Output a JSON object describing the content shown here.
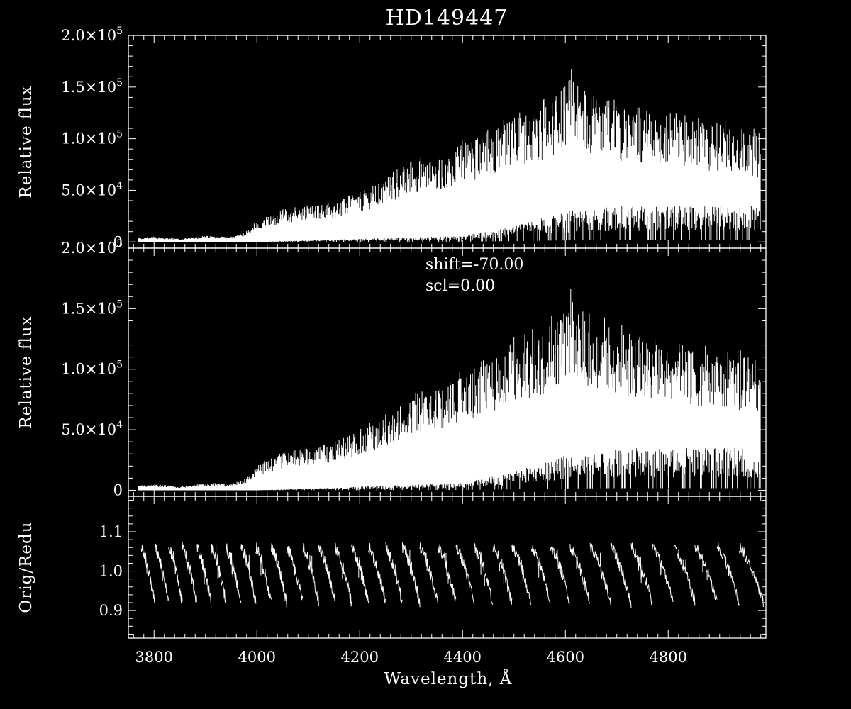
{
  "title": "HD149447",
  "chart_data": [
    {
      "type": "line",
      "panel": "top",
      "title": "HD149447",
      "xlabel": "",
      "ylabel": "Relative flux",
      "xlim": [
        3750,
        4990
      ],
      "ylim": [
        -6000,
        200000
      ],
      "x_ticks": [
        3800,
        4000,
        4200,
        4400,
        4600,
        4800
      ],
      "y_ticks": [
        {
          "value": 0,
          "mantissa": "0",
          "exp": ""
        },
        {
          "value": 50000,
          "mantissa": "5.0×10",
          "exp": "4"
        },
        {
          "value": 100000,
          "mantissa": "1.0×10",
          "exp": "5"
        },
        {
          "value": 150000,
          "mantissa": "1.5×10",
          "exp": "5"
        },
        {
          "value": 200000,
          "mantissa": "2.0×10",
          "exp": "5"
        }
      ],
      "series": [
        {
          "envelope_upper": {
            "x": [
              3770,
              3800,
              3850,
              3900,
              3950,
              3980,
              4000,
              4050,
              4100,
              4150,
              4200,
              4250,
              4300,
              4350,
              4400,
              4450,
              4500,
              4550,
              4580,
              4610,
              4650,
              4700,
              4750,
              4800,
              4850,
              4900,
              4950,
              4980
            ],
            "y": [
              4000,
              5000,
              3000,
              6000,
              5000,
              10000,
              20000,
              30000,
              35000,
              38000,
              48000,
              60000,
              75000,
              82000,
              95000,
              105000,
              120000,
              128000,
              140000,
              160000,
              140000,
              130000,
              125000,
              120000,
              115000,
              112000,
              110000,
              100000
            ]
          },
          "envelope_lower": {
            "x": [
              3770,
              3950,
              4000,
              4200,
              4400,
              4500,
              4600,
              4700,
              4800,
              4900,
              4980
            ],
            "y": [
              0,
              0,
              0,
              3000,
              6000,
              15000,
              30000,
              35000,
              35000,
              35000,
              35000
            ]
          }
        }
      ]
    },
    {
      "type": "line",
      "panel": "middle",
      "xlabel": "",
      "ylabel": "Relative flux",
      "xlim": [
        3750,
        4990
      ],
      "ylim": [
        -5000,
        200000
      ],
      "annotations": [
        "shift=-70.00",
        "scl=0.00"
      ],
      "x_ticks": [
        3800,
        4000,
        4200,
        4400,
        4600,
        4800
      ],
      "y_ticks": [
        {
          "value": 0,
          "mantissa": "0",
          "exp": ""
        },
        {
          "value": 50000,
          "mantissa": "5.0×10",
          "exp": "4"
        },
        {
          "value": 100000,
          "mantissa": "1.0×10",
          "exp": "5"
        },
        {
          "value": 150000,
          "mantissa": "1.5×10",
          "exp": "5"
        },
        {
          "value": 200000,
          "mantissa": "2.0×10",
          "exp": "5"
        }
      ],
      "series": [
        {
          "envelope_upper": {
            "x": [
              3770,
              3800,
              3850,
              3900,
              3950,
              3980,
              4000,
              4050,
              4100,
              4150,
              4200,
              4250,
              4300,
              4350,
              4400,
              4450,
              4500,
              4550,
              4580,
              4610,
              4650,
              4700,
              4750,
              4800,
              4850,
              4900,
              4950,
              4980
            ],
            "y": [
              4000,
              5000,
              3000,
              6000,
              5000,
              10000,
              20000,
              30000,
              35000,
              38000,
              48000,
              60000,
              75000,
              82000,
              95000,
              105000,
              120000,
              128000,
              140000,
              158000,
              140000,
              130000,
              125000,
              118000,
              115000,
              112000,
              110000,
              100000
            ]
          },
          "envelope_lower": {
            "x": [
              3770,
              3950,
              4000,
              4200,
              4400,
              4500,
              4600,
              4700,
              4800,
              4900,
              4980
            ],
            "y": [
              0,
              0,
              0,
              3000,
              6000,
              15000,
              30000,
              35000,
              35000,
              35000,
              35000
            ]
          }
        }
      ]
    },
    {
      "type": "line",
      "panel": "bottom",
      "xlabel": "Wavelength, Å",
      "ylabel": "Orig/Redu",
      "xlim": [
        3750,
        4990
      ],
      "ylim": [
        0.83,
        1.19
      ],
      "x_ticks": [
        3800,
        4000,
        4200,
        4400,
        4600,
        4800
      ],
      "y_ticks": [
        {
          "value": 0.9,
          "mantissa": "0.9",
          "exp": ""
        },
        {
          "value": 1.0,
          "mantissa": "1.0",
          "exp": ""
        },
        {
          "value": 1.1,
          "mantissa": "1.1",
          "exp": ""
        }
      ],
      "series": [
        {
          "order_start_x": [
            3775,
            3801,
            3828,
            3855,
            3883,
            3911,
            3940,
            3969,
            3998,
            4028,
            4058,
            4089,
            4120,
            4152,
            4184,
            4217,
            4250,
            4283,
            4317,
            4352,
            4387,
            4423,
            4459,
            4496,
            4533,
            4571,
            4609,
            4648,
            4688,
            4728,
            4769,
            4810,
            4852,
            4895,
            4938
          ],
          "peak_ratio": 1.06,
          "dip_ratio": 0.92,
          "baseline_ratio": 1.0
        }
      ]
    }
  ]
}
